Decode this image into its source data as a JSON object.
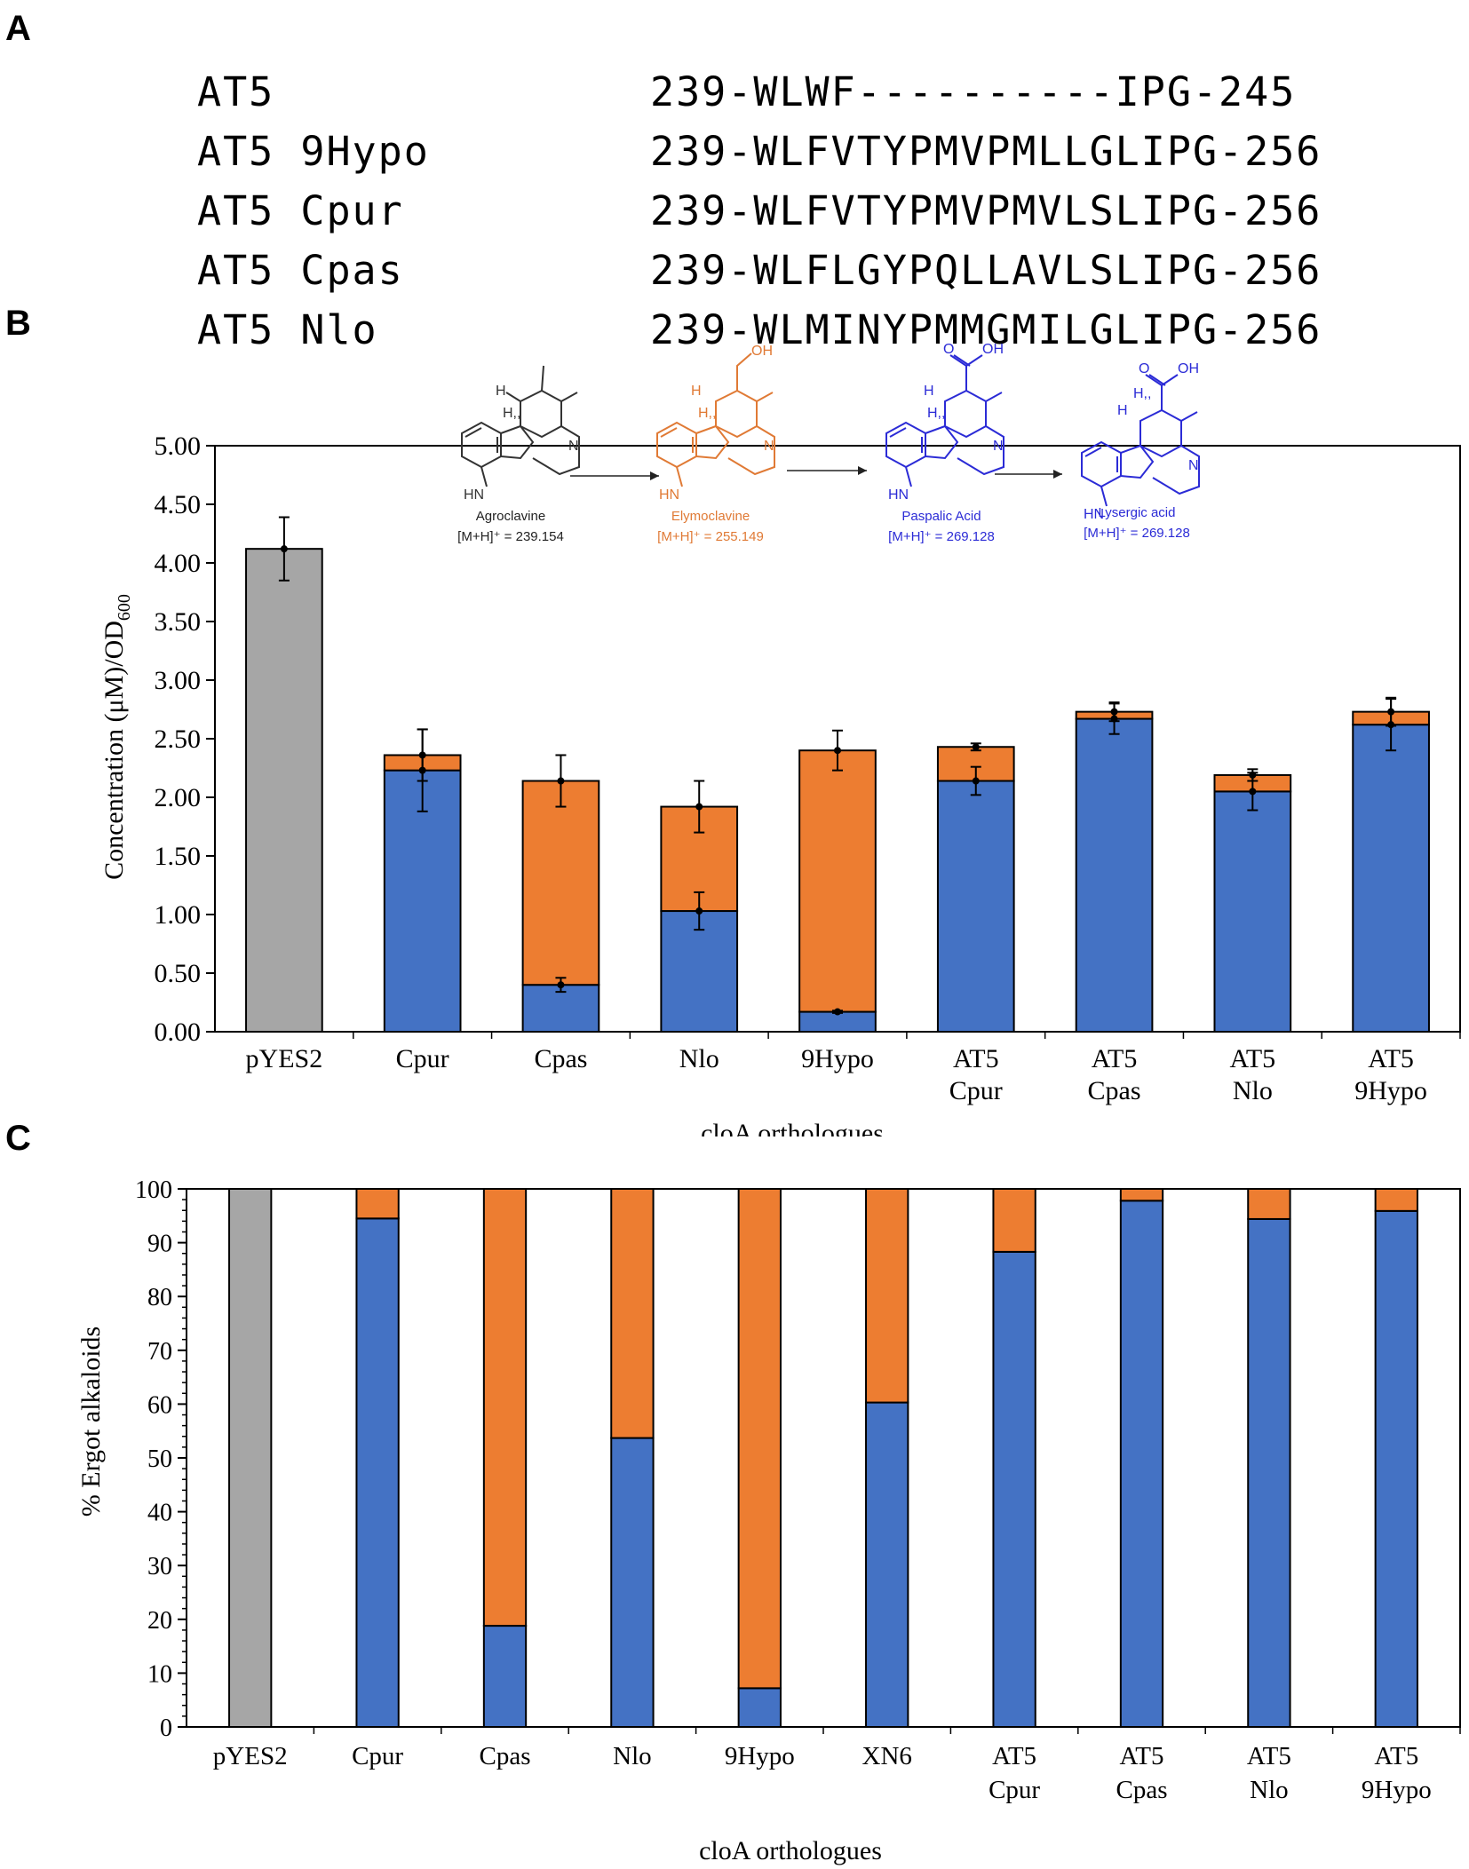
{
  "panels": {
    "a": "A",
    "b": "B",
    "c": "C"
  },
  "sequences": [
    {
      "name": "AT5",
      "seq": "239-WLWF----------IPG-245"
    },
    {
      "name": "AT5 9Hypo",
      "seq": "239-WLFVTYPMVPMLLGLIPG-256"
    },
    {
      "name": "AT5 Cpur",
      "seq": "239-WLFVTYPMVPMVLSLIPG-256"
    },
    {
      "name": "AT5 Cpas",
      "seq": "239-WLFLGYPQLLAVLSLIPG-256"
    },
    {
      "name": "AT5 Nlo",
      "seq": "239-WLMINYPMMGMILGLIPG-256"
    }
  ],
  "colors": {
    "agroclavine": "#a6a6a6",
    "elymoclavine": "#ed7d31",
    "acid": "#4472c4",
    "struct_orange": "#e07a35",
    "struct_blue": "#2b2bd6"
  },
  "scheme": [
    {
      "name": "Agroclavine",
      "mass": "[M+H]⁺ = 239.154"
    },
    {
      "name": "Elymoclavine",
      "mass": "[M+H]⁺ = 255.149"
    },
    {
      "name": "Paspalic Acid",
      "mass": "[M+H]⁺ = 269.128"
    },
    {
      "name": "Lysergic acid",
      "mass": "[M+H]⁺ = 269.128"
    }
  ],
  "atoms": {
    "h": "H",
    "h_stereo": "H,,",
    "hn": "HN",
    "n": "N",
    "oh": "OH",
    "o": "O"
  },
  "chart_data": [
    {
      "type": "bar",
      "stacked": true,
      "title": "",
      "xlabel": "cloA orthologues",
      "ylabel_main": "Concentration (μM)/OD",
      "ylabel_sub": "600",
      "ylim": [
        0,
        5
      ],
      "yticks": [
        "0.00",
        "0.50",
        "1.00",
        "1.50",
        "2.00",
        "2.50",
        "3.00",
        "3.50",
        "4.00",
        "4.50",
        "5.00"
      ],
      "categories": [
        [
          "pYES2"
        ],
        [
          "Cpur"
        ],
        [
          "Cpas"
        ],
        [
          "Nlo"
        ],
        [
          "9Hypo"
        ],
        [
          "AT5",
          "Cpur"
        ],
        [
          "AT5",
          "Cpas"
        ],
        [
          "AT5",
          "Nlo"
        ],
        [
          "AT5",
          "9Hypo"
        ]
      ],
      "series": [
        {
          "name": "Agroclavine",
          "color": "#a6a6a6",
          "values": [
            4.12,
            0,
            0,
            0,
            0,
            0,
            0,
            0,
            0
          ],
          "error": [
            0.27,
            0,
            0,
            0,
            0,
            0,
            0,
            0,
            0
          ]
        },
        {
          "name": "Acid",
          "color": "#4472c4",
          "values": [
            0,
            2.23,
            0.4,
            1.03,
            0.17,
            2.14,
            2.67,
            2.05,
            2.62
          ],
          "error": [
            0,
            0.35,
            0.06,
            0.16,
            0.01,
            0.12,
            0.13,
            0.16,
            0.22
          ]
        },
        {
          "name": "Elymoclavine",
          "color": "#ed7d31",
          "values": [
            0,
            0.13,
            1.74,
            0.89,
            2.23,
            0.29,
            0.06,
            0.14,
            0.11
          ],
          "error": [
            0,
            0.22,
            0.22,
            0.22,
            0.17,
            0.03,
            0.08,
            0.05,
            0.12
          ]
        }
      ]
    },
    {
      "type": "bar",
      "stacked": true,
      "title": "",
      "xlabel": "cloA orthologues",
      "ylabel": "% Ergot alkaloids",
      "ylim": [
        0,
        100
      ],
      "yticks": [
        "0",
        "10",
        "20",
        "30",
        "40",
        "50",
        "60",
        "70",
        "80",
        "90",
        "100"
      ],
      "categories": [
        [
          "pYES2"
        ],
        [
          "Cpur"
        ],
        [
          "Cpas"
        ],
        [
          "Nlo"
        ],
        [
          "9Hypo"
        ],
        [
          "XN6"
        ],
        [
          "AT5",
          "Cpur"
        ],
        [
          "AT5",
          "Cpas"
        ],
        [
          "AT5",
          "Nlo"
        ],
        [
          "AT5",
          "9Hypo"
        ]
      ],
      "series": [
        {
          "name": "Agroclavine",
          "color": "#a6a6a6",
          "values": [
            100,
            0,
            0,
            0,
            0,
            0,
            0,
            0,
            0,
            0
          ]
        },
        {
          "name": "Acid",
          "color": "#4472c4",
          "values": [
            0,
            94.5,
            18.8,
            53.7,
            7.2,
            60.3,
            88.3,
            97.8,
            94.4,
            95.9
          ]
        },
        {
          "name": "Elymoclavine",
          "color": "#ed7d31",
          "values": [
            0,
            5.5,
            81.2,
            46.3,
            92.8,
            39.7,
            11.7,
            2.2,
            5.6,
            4.1
          ]
        }
      ]
    }
  ]
}
